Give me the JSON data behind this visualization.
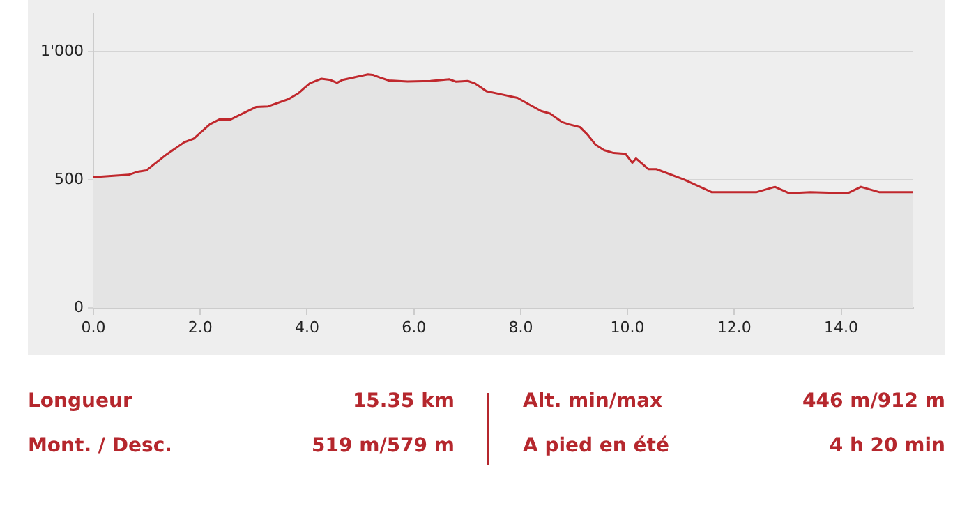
{
  "chart_data": [
    {
      "type": "area",
      "color": "#c0282d",
      "x": [
        0,
        0.66,
        0.83,
        0.99,
        1.36,
        1.7,
        1.88,
        2.18,
        2.36,
        2.57,
        3.05,
        3.27,
        3.66,
        3.83,
        4.05,
        4.27,
        4.44,
        4.56,
        4.66,
        5.14,
        5.23,
        5.36,
        5.53,
        5.88,
        6.31,
        6.66,
        6.79,
        7.01,
        7.14,
        7.36,
        7.63,
        7.94,
        8.38,
        8.55,
        8.77,
        8.9,
        9.11,
        9.25,
        9.4,
        9.56,
        9.74,
        9.96,
        10.09,
        10.16,
        10.39,
        10.54,
        11.05,
        11.58,
        12.41,
        12.76,
        13.03,
        13.42,
        14.12,
        14.37,
        14.72,
        15.35
      ],
      "values": [
        511,
        520,
        532,
        537,
        598,
        647,
        661,
        717,
        736,
        736,
        785,
        787,
        816,
        837,
        877,
        895,
        890,
        879,
        890,
        912,
        910,
        900,
        888,
        884,
        886,
        893,
        883,
        886,
        877,
        846,
        834,
        820,
        769,
        759,
        726,
        717,
        706,
        677,
        638,
        616,
        605,
        602,
        567,
        584,
        542,
        542,
        502,
        452,
        452,
        473,
        448,
        452,
        448,
        473,
        452,
        452
      ],
      "xlim": [
        0,
        15.35
      ],
      "xticks": [
        {
          "value": 0,
          "label": "0.0"
        },
        {
          "value": 2,
          "label": "2.0"
        },
        {
          "value": 4,
          "label": "4.0"
        },
        {
          "value": 6,
          "label": "6.0"
        },
        {
          "value": 8,
          "label": "8.0"
        },
        {
          "value": 10,
          "label": "10.0"
        },
        {
          "value": 12,
          "label": "12.0"
        },
        {
          "value": 14,
          "label": "14.0"
        }
      ],
      "ylim": [
        0,
        1150
      ],
      "yticks": [
        0,
        500,
        {
          "value": 1000,
          "label": "1'000"
        }
      ],
      "grid": "y",
      "legend": false,
      "marker": "none",
      "line_style": "solid"
    },
    {
      "type": "other",
      "annotations": [
        "Longueur",
        "15.35 km",
        "Alt. min/max",
        "446 m/912 m",
        "Mont. / Desc.",
        "519 m/579 m",
        "A pied en été",
        "4 h 20 min"
      ]
    }
  ]
}
